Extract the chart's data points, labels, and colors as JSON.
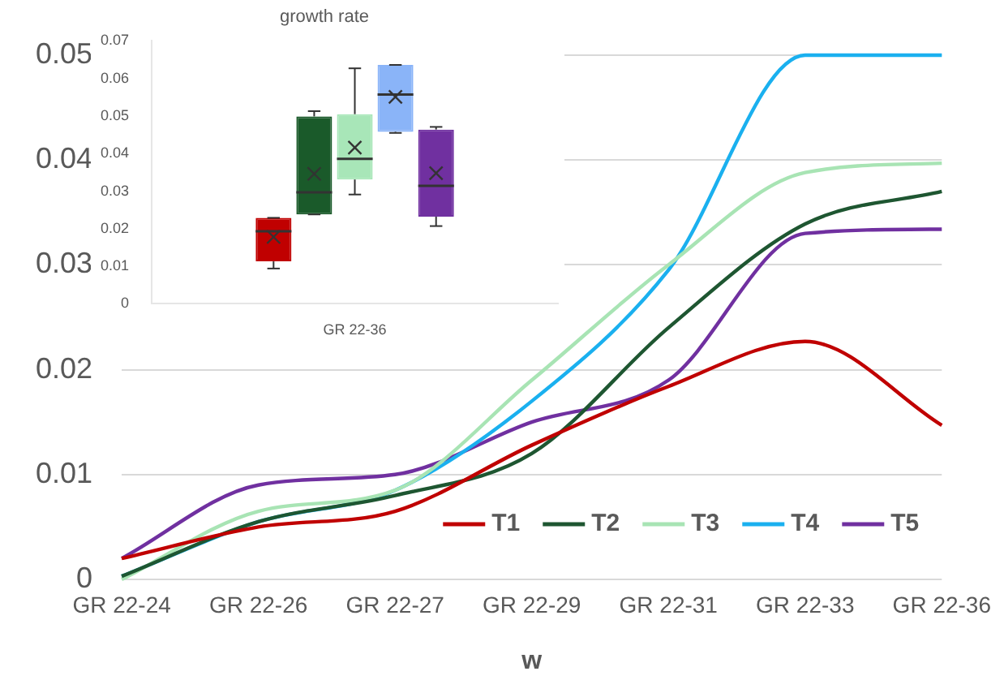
{
  "chart_data": [
    {
      "type": "line",
      "xlabel": "w",
      "categories": [
        "GR 22-24",
        "GR 22-26",
        "GR 22-27",
        "GR 22-29",
        "GR 22-31",
        "GR 22-33",
        "GR 22-36"
      ],
      "ylim": [
        0,
        0.05
      ],
      "yticks": [
        0,
        0.01,
        0.02,
        0.03,
        0.04,
        0.05
      ],
      "grid": "y",
      "legend": "bottom right",
      "series": [
        {
          "name": "T1",
          "color": "#c00000",
          "values": [
            0.002,
            0.005,
            0.0065,
            0.0128,
            0.0184,
            0.0227,
            0.0147
          ]
        },
        {
          "name": "T2",
          "color": "#1e5631",
          "values": [
            0.0003,
            0.0055,
            0.008,
            0.012,
            0.024,
            0.0339,
            0.037
          ]
        },
        {
          "name": "T3",
          "color": "#a8e4b4",
          "values": [
            0,
            0.0065,
            0.0085,
            0.019,
            0.03,
            0.0388,
            0.0397
          ]
        },
        {
          "name": "T4",
          "color": "#1ab0ef",
          "values": [
            0.0003,
            0.0055,
            0.0085,
            0.017,
            0.0295,
            0.05,
            0.05
          ]
        },
        {
          "name": "T5",
          "color": "#7030a0",
          "values": [
            0.002,
            0.009,
            0.01,
            0.015,
            0.019,
            0.033,
            0.0334
          ]
        }
      ]
    },
    {
      "type": "box",
      "title": "growth rate",
      "categories": [
        "GR 22-36"
      ],
      "ylim": [
        0,
        0.07
      ],
      "yticks": [
        0,
        0.01,
        0.02,
        0.03,
        0.04,
        0.05,
        0.06,
        0.07
      ],
      "series": [
        {
          "color": "#c00000",
          "boxes": [
            {
              "low": 0.0094,
              "q1": 0.0113,
              "median": 0.0193,
              "q3": 0.0229,
              "high": 0.0229,
              "mean": 0.0178
            }
          ]
        },
        {
          "color": "#1a5a2a",
          "boxes": [
            {
              "low": 0.0238,
              "q1": 0.0238,
              "median": 0.0297,
              "q3": 0.0499,
              "high": 0.0513,
              "mean": 0.0346
            }
          ]
        },
        {
          "color": "#a8e6b8",
          "boxes": [
            {
              "low": 0.0291,
              "q1": 0.0331,
              "median": 0.0386,
              "q3": 0.0505,
              "high": 0.0627,
              "mean": 0.0416
            }
          ]
        },
        {
          "color": "#8ab4f8",
          "boxes": [
            {
              "low": 0.0455,
              "q1": 0.0458,
              "median": 0.0557,
              "q3": 0.0636,
              "high": 0.0636,
              "mean": 0.0551
            }
          ]
        },
        {
          "color": "#7030a0",
          "boxes": [
            {
              "low": 0.0207,
              "q1": 0.0232,
              "median": 0.0314,
              "q3": 0.0464,
              "high": 0.0471,
              "mean": 0.0348
            }
          ]
        }
      ]
    }
  ]
}
